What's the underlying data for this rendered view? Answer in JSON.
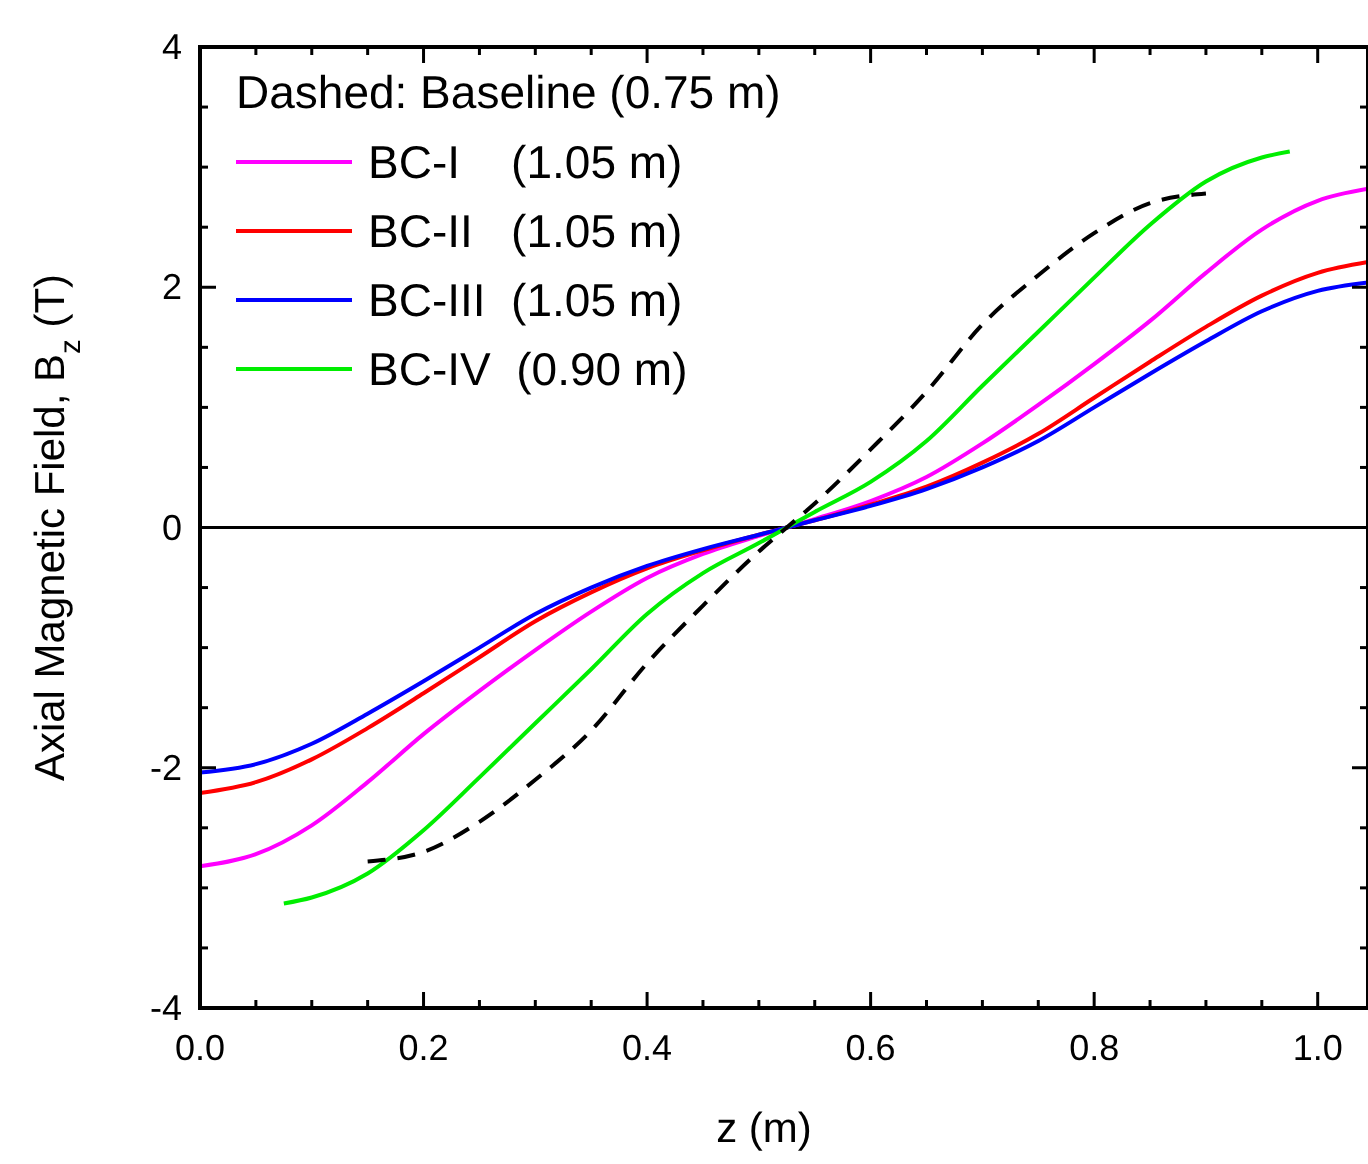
{
  "chart_data": {
    "type": "line",
    "xlabel": "z (m)",
    "ylabel": "Axial Magnetic Field, B$_{z}$ (T)",
    "legend_title": "Dashed: Baseline (0.75 m)",
    "legend": "top left",
    "xlim": [
      0,
      1.045
    ],
    "ylim": [
      -4,
      4
    ],
    "xticks": [
      {
        "value": 0,
        "label": "0.0"
      },
      {
        "value": 0.05,
        "label": null
      },
      {
        "value": 0.2,
        "label": "0.2"
      },
      {
        "value": 0.1,
        "label": null
      },
      {
        "value": 0.15,
        "label": null
      },
      {
        "value": 0.25,
        "label": null
      },
      {
        "value": 0.3,
        "label": null
      },
      {
        "value": 0.35,
        "label": null
      },
      {
        "value": 0.4,
        "label": "0.4"
      },
      {
        "value": 0.45,
        "label": null
      },
      {
        "value": 0.5,
        "label": null
      },
      {
        "value": 0.55,
        "label": null
      },
      {
        "value": 0.6,
        "label": "0.6"
      },
      {
        "value": 0.65,
        "label": null
      },
      {
        "value": 0.7,
        "label": null
      },
      {
        "value": 0.75,
        "label": null
      },
      {
        "value": 0.8,
        "label": "0.8"
      },
      {
        "value": 0.85,
        "label": null
      },
      {
        "value": 0.9,
        "label": null
      },
      {
        "value": 0.95,
        "label": null
      },
      {
        "value": 1.0,
        "label": "1.0"
      }
    ],
    "yticks": [
      -4,
      {
        "value": -3.5,
        "label": null
      },
      {
        "value": -3,
        "label": null
      },
      {
        "value": -2.5,
        "label": null
      },
      -2,
      {
        "value": -1.5,
        "label": null
      },
      {
        "value": -1,
        "label": null
      },
      {
        "value": -0.5,
        "label": null
      },
      0,
      {
        "value": 0.5,
        "label": null
      },
      {
        "value": 1,
        "label": null
      },
      {
        "value": 1.5,
        "label": null
      },
      2,
      {
        "value": 2.5,
        "label": null
      },
      {
        "value": 3,
        "label": null
      },
      {
        "value": 3.5,
        "label": null
      },
      4
    ],
    "ref_lines": [
      {
        "axis": "y",
        "value": 0,
        "color": "#000000"
      }
    ],
    "series": [
      {
        "name": "BC-I    (1.05 m)",
        "color": "#ff00ff",
        "x": [
          0,
          0.05,
          0.1,
          0.15,
          0.2,
          0.25,
          0.3,
          0.35,
          0.4,
          0.45,
          0.5,
          0.525,
          0.55,
          0.6,
          0.65,
          0.7,
          0.75,
          0.8,
          0.85,
          0.9,
          0.95,
          1.0,
          1.045
        ],
        "values": [
          -2.82,
          -2.72,
          -2.48,
          -2.12,
          -1.72,
          -1.36,
          -1.02,
          -0.7,
          -0.42,
          -0.22,
          -0.07,
          0,
          0.07,
          0.22,
          0.42,
          0.7,
          1.02,
          1.36,
          1.72,
          2.12,
          2.48,
          2.72,
          2.82
        ]
      },
      {
        "name": "BC-II   (1.05 m)",
        "color": "#ff0000",
        "x": [
          0,
          0.05,
          0.1,
          0.15,
          0.2,
          0.25,
          0.3,
          0.35,
          0.4,
          0.45,
          0.5,
          0.525,
          0.55,
          0.6,
          0.65,
          0.7,
          0.75,
          0.8,
          0.85,
          0.9,
          0.95,
          1.0,
          1.045
        ],
        "values": [
          -2.21,
          -2.12,
          -1.93,
          -1.67,
          -1.38,
          -1.08,
          -0.78,
          -0.54,
          -0.34,
          -0.19,
          -0.06,
          0,
          0.06,
          0.19,
          0.34,
          0.54,
          0.78,
          1.08,
          1.38,
          1.67,
          1.93,
          2.12,
          2.21
        ]
      },
      {
        "name": "BC-III  (1.05 m)",
        "color": "#0000ff",
        "x": [
          0,
          0.05,
          0.1,
          0.15,
          0.2,
          0.25,
          0.3,
          0.35,
          0.4,
          0.45,
          0.5,
          0.525,
          0.55,
          0.6,
          0.65,
          0.7,
          0.75,
          0.8,
          0.85,
          0.9,
          0.95,
          1.0,
          1.045
        ],
        "values": [
          -2.04,
          -1.97,
          -1.8,
          -1.55,
          -1.28,
          -1.0,
          -0.72,
          -0.5,
          -0.32,
          -0.18,
          -0.06,
          0,
          0.06,
          0.18,
          0.32,
          0.5,
          0.72,
          1.0,
          1.28,
          1.55,
          1.8,
          1.97,
          2.04
        ]
      },
      {
        "name": "BC-IV  (0.90 m)",
        "color": "#00ee00",
        "x": [
          0.075,
          0.1,
          0.15,
          0.2,
          0.25,
          0.3,
          0.35,
          0.4,
          0.45,
          0.5,
          0.525,
          0.55,
          0.6,
          0.65,
          0.7,
          0.75,
          0.8,
          0.85,
          0.9,
          0.95,
          0.975
        ],
        "values": [
          -3.13,
          -3.08,
          -2.88,
          -2.52,
          -2.08,
          -1.63,
          -1.18,
          -0.72,
          -0.38,
          -0.13,
          0,
          0.13,
          0.38,
          0.72,
          1.18,
          1.63,
          2.08,
          2.52,
          2.88,
          3.08,
          3.13
        ]
      },
      {
        "color": "#000000",
        "line_style": "dashed",
        "x": [
          0.15,
          0.2,
          0.25,
          0.3,
          0.35,
          0.4,
          0.45,
          0.5,
          0.525,
          0.55,
          0.6,
          0.65,
          0.7,
          0.75,
          0.8,
          0.85,
          0.9
        ],
        "values": [
          -2.78,
          -2.7,
          -2.45,
          -2.1,
          -1.69,
          -1.13,
          -0.65,
          -0.2,
          0,
          0.2,
          0.65,
          1.13,
          1.69,
          2.1,
          2.45,
          2.7,
          2.78
        ]
      }
    ]
  }
}
